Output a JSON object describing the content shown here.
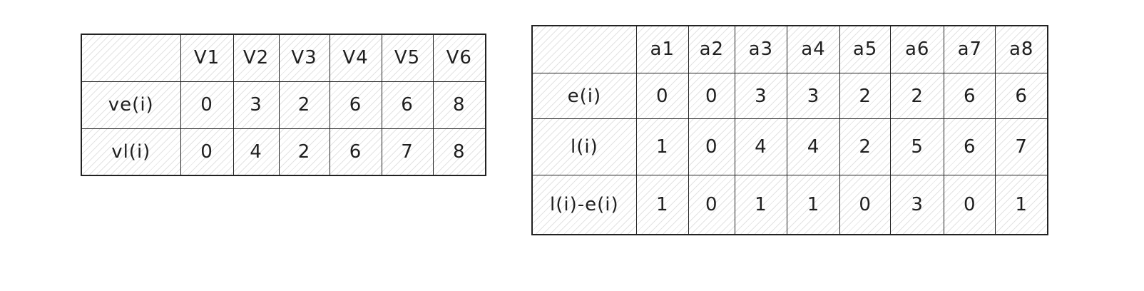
{
  "vertex_table": {
    "headers": [
      "",
      "V1",
      "V2",
      "V3",
      "V4",
      "V5",
      "V6"
    ],
    "rows": [
      {
        "label": "ve(i)",
        "values": [
          "0",
          "3",
          "2",
          "6",
          "6",
          "8"
        ]
      },
      {
        "label": "vl(i)",
        "values": [
          "0",
          "4",
          "2",
          "6",
          "7",
          "8"
        ]
      }
    ]
  },
  "activity_table": {
    "headers": [
      "",
      "a1",
      "a2",
      "a3",
      "a4",
      "a5",
      "a6",
      "a7",
      "a8"
    ],
    "rows": [
      {
        "label": "e(i)",
        "values": [
          "0",
          "0",
          "3",
          "3",
          "2",
          "2",
          "6",
          "6"
        ]
      },
      {
        "label": "l(i)",
        "values": [
          "1",
          "0",
          "4",
          "4",
          "2",
          "5",
          "6",
          "7"
        ]
      },
      {
        "label": "l(i)-e(i)",
        "values": [
          "1",
          "0",
          "1",
          "1",
          "0",
          "3",
          "0",
          "1"
        ]
      }
    ]
  }
}
